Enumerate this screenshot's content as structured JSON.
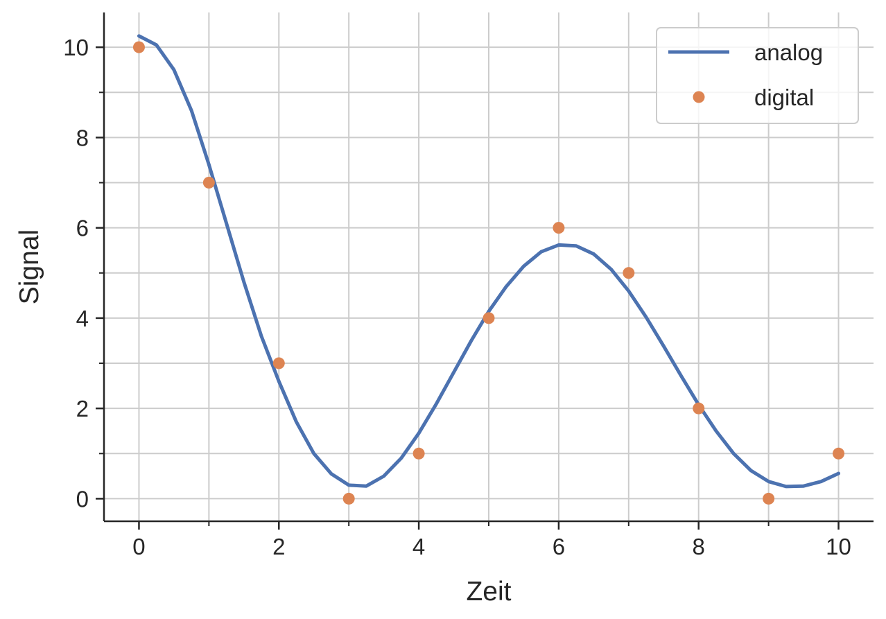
{
  "chart_data": {
    "type": "line",
    "xlabel": "Zeit",
    "ylabel": "Signal",
    "xlim": [
      -0.5,
      10.5
    ],
    "ylim": [
      -0.5,
      10.77
    ],
    "xticks": [
      0,
      2,
      4,
      6,
      8,
      10
    ],
    "yticks": [
      0,
      2,
      4,
      6,
      8,
      10
    ],
    "xminorticks": [
      1,
      3,
      5,
      7,
      9
    ],
    "yminorticks": [
      1,
      3,
      5,
      7,
      9
    ],
    "grid": true,
    "legend": "upper right",
    "series": [
      {
        "name": "analog",
        "color": "#4c72b0",
        "style": "line",
        "x": [
          0,
          0.25,
          0.5,
          0.75,
          1,
          1.25,
          1.5,
          1.75,
          2,
          2.25,
          2.5,
          2.75,
          3,
          3.25,
          3.5,
          3.75,
          4,
          4.25,
          4.5,
          4.75,
          5,
          5.25,
          5.5,
          5.75,
          6,
          6.25,
          6.5,
          6.75,
          7,
          7.25,
          7.5,
          7.75,
          8,
          8.25,
          8.5,
          8.75,
          9,
          9.25,
          9.5,
          9.75,
          10
        ],
        "values": [
          10.25,
          10.05,
          9.5,
          8.6,
          7.4,
          6.1,
          4.8,
          3.6,
          2.6,
          1.7,
          1.0,
          0.55,
          0.3,
          0.28,
          0.5,
          0.9,
          1.45,
          2.1,
          2.8,
          3.5,
          4.15,
          4.7,
          5.15,
          5.47,
          5.62,
          5.6,
          5.42,
          5.08,
          4.6,
          4.02,
          3.38,
          2.72,
          2.08,
          1.5,
          1.0,
          0.62,
          0.38,
          0.27,
          0.28,
          0.38,
          0.56
        ]
      },
      {
        "name": "digital",
        "color": "#dd8452",
        "style": "scatter",
        "x": [
          0,
          1,
          2,
          3,
          4,
          5,
          6,
          7,
          8,
          9,
          10
        ],
        "values": [
          10,
          7,
          3,
          0,
          1,
          4,
          6,
          5,
          2,
          0,
          1
        ]
      }
    ]
  }
}
